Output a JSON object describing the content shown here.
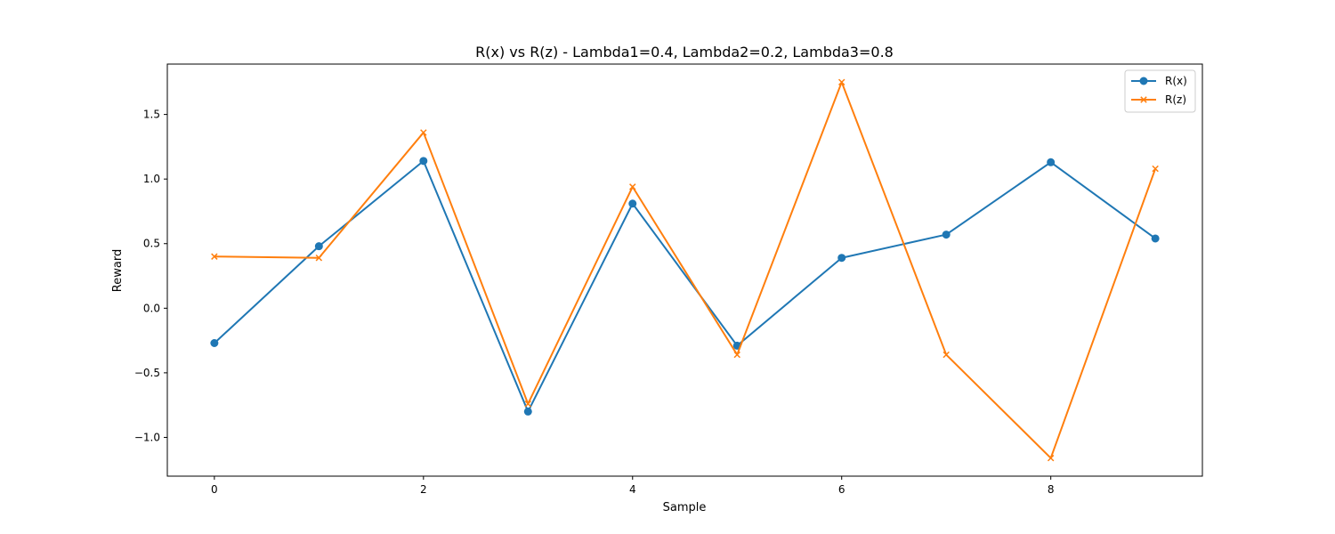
{
  "chart_data": {
    "type": "line",
    "title": "R(x) vs R(z) - Lambda1=0.4, Lambda2=0.2, Lambda3=0.8",
    "xlabel": "Sample",
    "ylabel": "Reward",
    "x": [
      0,
      1,
      2,
      3,
      4,
      5,
      6,
      7,
      8,
      9
    ],
    "xlim": [
      -0.45,
      9.45
    ],
    "ylim": [
      -1.3,
      1.89
    ],
    "xticks": [
      0,
      2,
      4,
      6,
      8
    ],
    "xtick_labels": [
      "0",
      "2",
      "4",
      "6",
      "8"
    ],
    "yticks": [
      -1.0,
      -0.5,
      0.0,
      0.5,
      1.0,
      1.5
    ],
    "ytick_labels": [
      "−1.0",
      "−0.5",
      "0.0",
      "0.5",
      "1.0",
      "1.5"
    ],
    "grid": false,
    "legend_position": "upper right",
    "series": [
      {
        "name": "R(x)",
        "color": "#1f77b4",
        "marker": "circle",
        "values": [
          -0.27,
          0.48,
          1.14,
          -0.8,
          0.81,
          -0.29,
          0.39,
          0.57,
          1.13,
          0.54
        ]
      },
      {
        "name": "R(z)",
        "color": "#ff7f0e",
        "marker": "x",
        "values": [
          0.4,
          0.39,
          1.36,
          -0.74,
          0.94,
          -0.36,
          1.75,
          -0.36,
          -1.16,
          1.08
        ]
      }
    ]
  }
}
